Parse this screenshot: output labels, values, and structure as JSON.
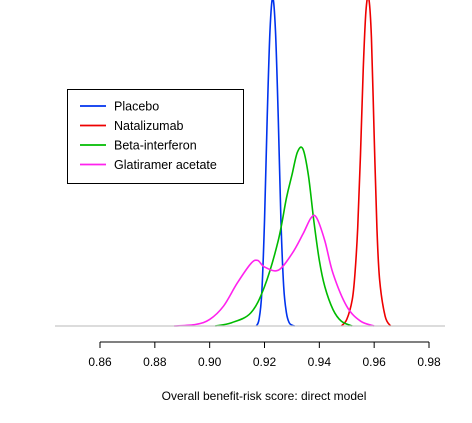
{
  "chart_data": {
    "type": "line",
    "xlabel": "Overall benefit-risk score: direct model",
    "ylabel": "",
    "title": "",
    "grid": false,
    "legend_position": "top-left",
    "xlim": [
      0.86,
      0.98
    ],
    "xticks": [
      0.86,
      0.88,
      0.9,
      0.92,
      0.94,
      0.96,
      0.98
    ],
    "xtick_labels": [
      "0.86",
      "0.88",
      "0.90",
      "0.92",
      "0.94",
      "0.96",
      "0.98"
    ],
    "ylim": [
      0,
      1.0
    ],
    "series": [
      {
        "name": "Placebo",
        "color": "#0033ee",
        "x": [
          0.917,
          0.918,
          0.919,
          0.92,
          0.921,
          0.922,
          0.923,
          0.924,
          0.925,
          0.926,
          0.927,
          0.928,
          0.929,
          0.93,
          0.931
        ],
        "y": [
          0.0,
          0.02,
          0.1,
          0.32,
          0.64,
          0.9,
          1.0,
          0.9,
          0.64,
          0.32,
          0.12,
          0.04,
          0.01,
          0.003,
          0.0
        ]
      },
      {
        "name": "Natalizumab",
        "color": "#ee0000",
        "x": [
          0.948,
          0.95,
          0.952,
          0.953,
          0.954,
          0.955,
          0.956,
          0.957,
          0.958,
          0.959,
          0.96,
          0.961,
          0.962,
          0.964,
          0.966
        ],
        "y": [
          0.0,
          0.02,
          0.08,
          0.16,
          0.3,
          0.52,
          0.78,
          0.96,
          1.0,
          0.88,
          0.58,
          0.3,
          0.14,
          0.03,
          0.0
        ]
      },
      {
        "name": "Beta-interferon",
        "color": "#00bb00",
        "x": [
          0.902,
          0.908,
          0.915,
          0.92,
          0.925,
          0.928,
          0.93,
          0.932,
          0.934,
          0.936,
          0.938,
          0.94,
          0.942,
          0.945,
          0.948,
          0.952
        ],
        "y": [
          0.0,
          0.01,
          0.04,
          0.12,
          0.26,
          0.39,
          0.46,
          0.53,
          0.54,
          0.46,
          0.32,
          0.2,
          0.12,
          0.05,
          0.015,
          0.0
        ]
      },
      {
        "name": "Glatiramer acetate",
        "color": "#ff22ee",
        "x": [
          0.887,
          0.895,
          0.9,
          0.905,
          0.91,
          0.915,
          0.9175,
          0.92,
          0.925,
          0.93,
          0.934,
          0.937,
          0.939,
          0.942,
          0.945,
          0.95,
          0.955,
          0.96
        ],
        "y": [
          0.0,
          0.005,
          0.02,
          0.06,
          0.13,
          0.19,
          0.2,
          0.18,
          0.17,
          0.22,
          0.28,
          0.33,
          0.33,
          0.26,
          0.16,
          0.06,
          0.015,
          0.0
        ]
      }
    ]
  }
}
